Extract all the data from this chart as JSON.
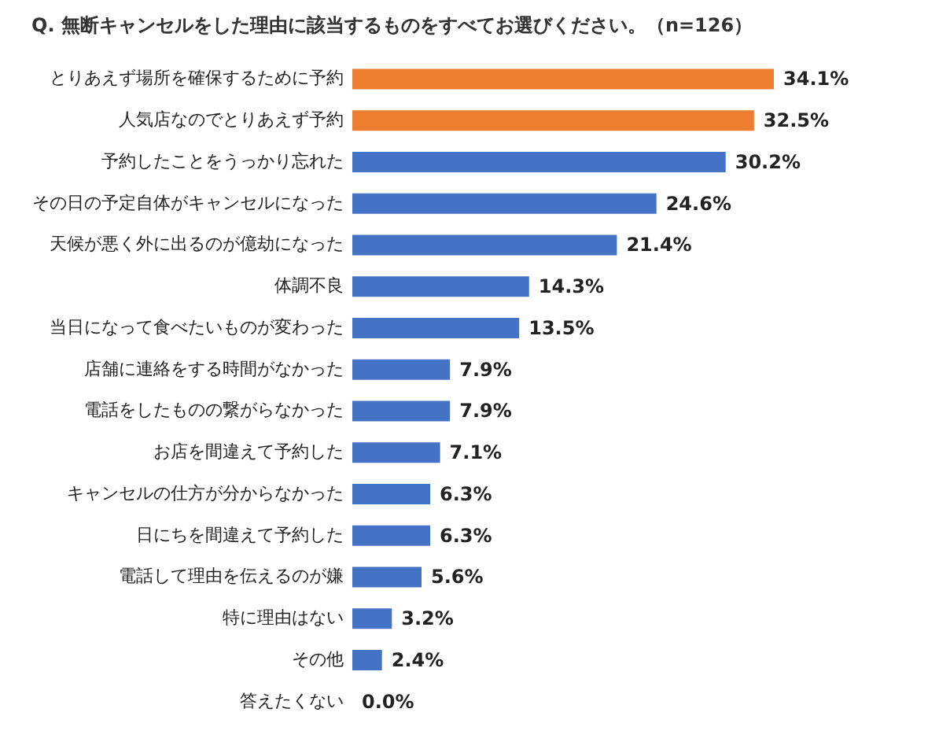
{
  "chart_data": {
    "type": "bar",
    "orientation": "horizontal",
    "title": "Q. 無断キャンセルをした理由に該当するものをすべてお選びください。（n=126）",
    "categories": [
      "とりあえず場所を確保するために予約",
      "人気店なのでとりあえず予約",
      "予約したことをうっかり忘れた",
      "その日の予定自体がキャンセルになった",
      "天候が悪く外に出るのが億劫になった",
      "体調不良",
      "当日になって食べたいものが変わった",
      "店舗に連絡をする時間がなかった",
      "電話をしたものの繋がらなかった",
      "お店を間違えて予約した",
      "キャンセルの仕方が分からなかった",
      "日にちを間違えて予約した",
      "電話して理由を伝えるのが嫌",
      "特に理由はない",
      "その他",
      "答えたくない"
    ],
    "values": [
      34.1,
      32.5,
      30.2,
      24.6,
      21.4,
      14.3,
      13.5,
      7.9,
      7.9,
      7.1,
      6.3,
      6.3,
      5.6,
      3.2,
      2.4,
      0.0
    ],
    "value_labels": [
      "34.1%",
      "32.5%",
      "30.2%",
      "24.6%",
      "21.4%",
      "14.3%",
      "13.5%",
      "7.9%",
      "7.9%",
      "7.1%",
      "6.3%",
      "6.3%",
      "5.6%",
      "3.2%",
      "2.4%",
      "0.0%"
    ],
    "colors": [
      "#ed7d31",
      "#ed7d31",
      "#4472c4",
      "#4472c4",
      "#4472c4",
      "#4472c4",
      "#4472c4",
      "#4472c4",
      "#4472c4",
      "#4472c4",
      "#4472c4",
      "#4472c4",
      "#4472c4",
      "#4472c4",
      "#4472c4",
      "#4472c4"
    ]
  }
}
